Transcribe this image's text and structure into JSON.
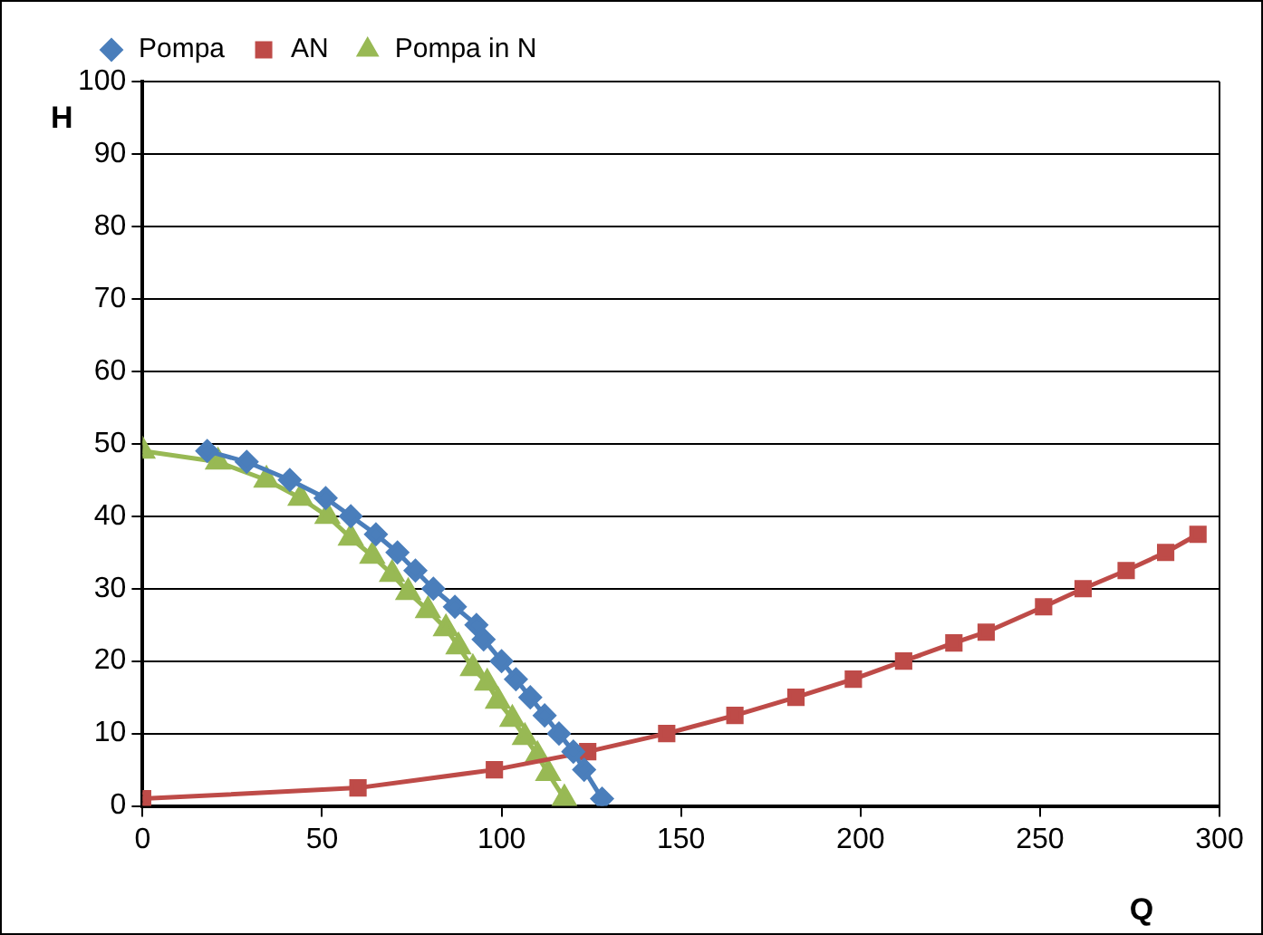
{
  "chart_data": {
    "type": "line",
    "xlabel": "Q",
    "ylabel": "H",
    "xlim": [
      0,
      300
    ],
    "xticks": [
      0,
      50,
      100,
      150,
      200,
      250,
      300
    ],
    "ylim": [
      0,
      100
    ],
    "yticks": [
      0,
      10,
      20,
      30,
      40,
      50,
      60,
      70,
      80,
      90,
      100
    ],
    "grid": "y",
    "legend": "top",
    "line_style": "solid",
    "series": [
      {
        "name": "Pompa",
        "color": "#4a7ebb",
        "marker": "diamond",
        "x": [
          18,
          29,
          41,
          51,
          58,
          65,
          71,
          76,
          81,
          87,
          93,
          95,
          100,
          104,
          108,
          112,
          116,
          120,
          123,
          128
        ],
        "values": [
          49,
          47.5,
          45,
          42.5,
          40,
          37.5,
          35,
          32.5,
          30,
          27.5,
          25,
          23,
          20,
          17.5,
          15,
          12.5,
          10,
          7.5,
          5,
          1
        ]
      },
      {
        "name": "AN",
        "color": "#be4b48",
        "marker": "square",
        "x": [
          0,
          60,
          98,
          124,
          146,
          165,
          182,
          198,
          212,
          226,
          235,
          251,
          262,
          274,
          285,
          294
        ],
        "values": [
          1,
          2.5,
          5,
          7.5,
          10,
          12.5,
          15,
          17.5,
          20,
          22.5,
          24,
          27.5,
          30,
          32.5,
          35,
          37.5
        ]
      },
      {
        "name": "Pompa in N",
        "color": "#98b954",
        "marker": "triangle",
        "x": [
          0,
          21,
          34.5,
          44,
          51.5,
          58,
          64,
          69.5,
          74,
          79.5,
          84.5,
          88,
          92,
          96,
          99,
          103,
          106.5,
          110,
          113,
          117.5
        ],
        "values": [
          49,
          47.5,
          45,
          42.5,
          40,
          37,
          34.5,
          32,
          29.5,
          27,
          24.5,
          22,
          19,
          17,
          14.5,
          12,
          9.5,
          7,
          4.5,
          1
        ]
      }
    ]
  }
}
